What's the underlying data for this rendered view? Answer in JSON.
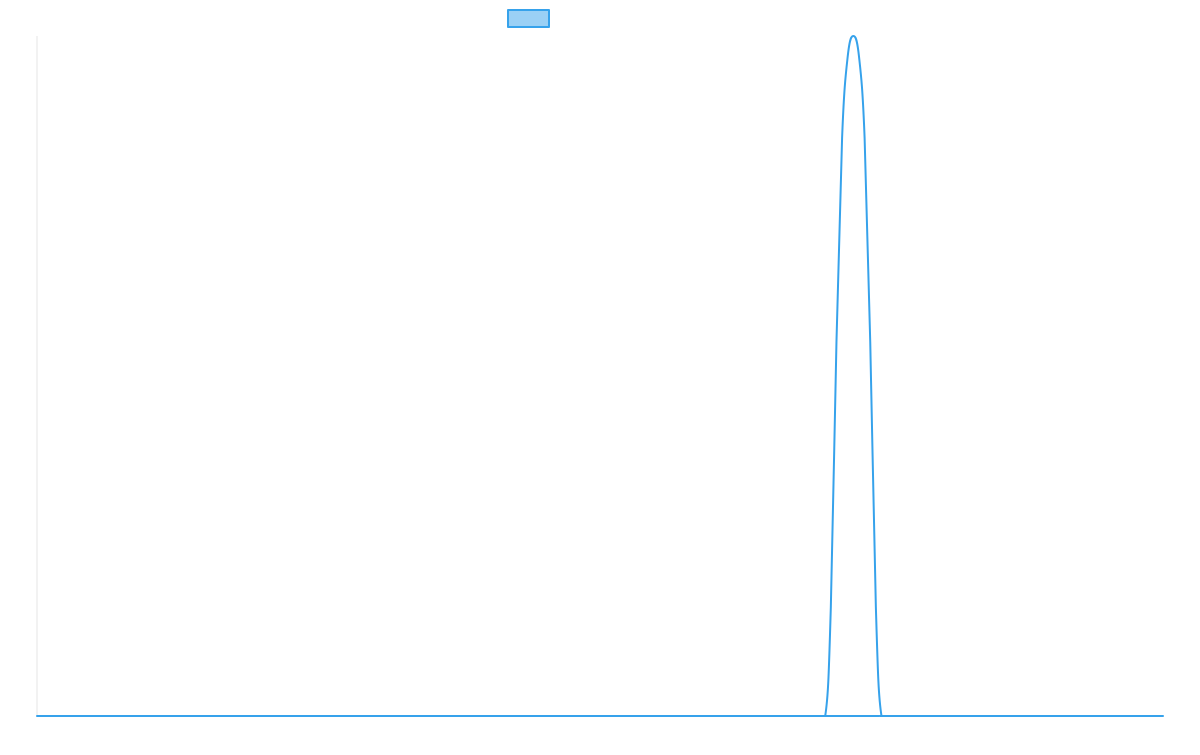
{
  "chart_data": {
    "type": "line",
    "title": "",
    "xlabel": "",
    "ylabel": "",
    "grid": false,
    "legend_placement": "top-center",
    "xlim": [
      0,
      1
    ],
    "ylim": [
      0,
      1
    ],
    "series": [
      {
        "name": "",
        "color": "#36a2eb",
        "fill_color": "#9ad0f5",
        "x": [
          0,
          0.69,
          0.7,
          0.705,
          0.71,
          0.715,
          0.72,
          0.725,
          0.73,
          0.735,
          0.74,
          0.745,
          0.75,
          0.76,
          0.77,
          1
        ],
        "y": [
          0,
          0,
          0,
          0.16,
          0.55,
          0.85,
          0.97,
          1,
          0.97,
          0.85,
          0.55,
          0.16,
          0,
          0,
          0,
          0
        ]
      }
    ]
  },
  "colors": {
    "axis": "#e5e5e5",
    "background": "#ffffff"
  }
}
